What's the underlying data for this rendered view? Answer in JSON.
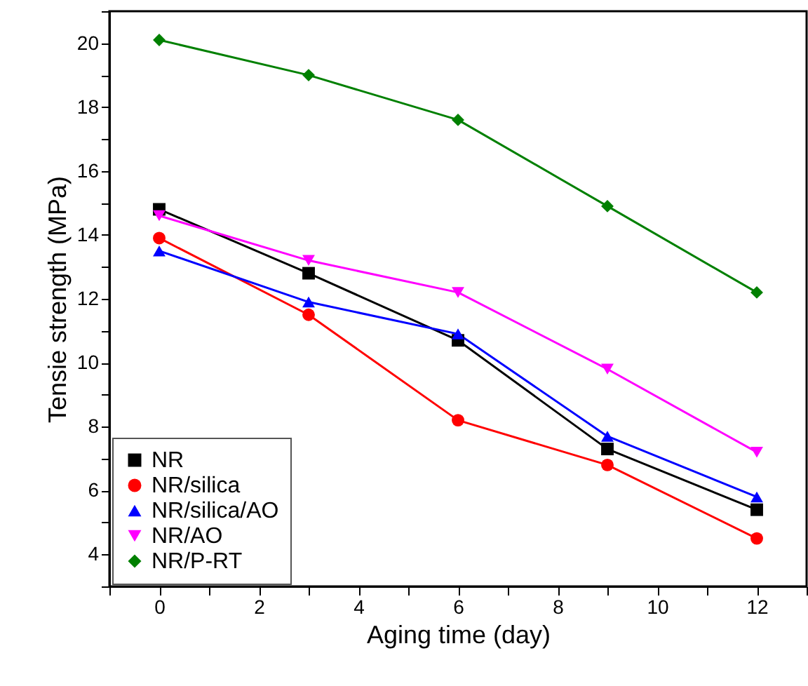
{
  "chart_data": {
    "type": "line",
    "xlabel": "Aging time (day)",
    "ylabel": "Tensie strength (MPa)",
    "x": [
      0,
      3,
      6,
      9,
      12
    ],
    "series": [
      {
        "name": "NR",
        "color": "#000000",
        "marker": "square",
        "values": [
          14.8,
          12.8,
          10.7,
          7.3,
          5.4
        ]
      },
      {
        "name": "NR/silica",
        "color": "#ff0000",
        "marker": "circle",
        "values": [
          13.9,
          11.5,
          8.2,
          6.8,
          4.5
        ]
      },
      {
        "name": "NR/silica/AO",
        "color": "#0000ff",
        "marker": "triangle-up",
        "values": [
          13.5,
          11.9,
          10.9,
          7.7,
          5.8
        ]
      },
      {
        "name": "NR/AO",
        "color": "#ff00ff",
        "marker": "triangle-down",
        "values": [
          14.6,
          13.2,
          12.2,
          9.8,
          7.2
        ]
      },
      {
        "name": "NR/P-RT",
        "color": "#008000",
        "marker": "diamond",
        "values": [
          20.1,
          19.0,
          17.6,
          14.9,
          12.2
        ]
      }
    ],
    "xlim": [
      -1,
      13
    ],
    "ylim": [
      3,
      21
    ],
    "xticks": [
      {
        "value": -1,
        "label": null
      },
      0,
      {
        "value": 1,
        "label": null
      },
      2,
      {
        "value": 3,
        "label": null
      },
      4,
      {
        "value": 5,
        "label": null
      },
      6,
      {
        "value": 7,
        "label": null
      },
      8,
      {
        "value": 9,
        "label": null
      },
      10,
      {
        "value": 11,
        "label": null
      },
      12,
      {
        "value": 13,
        "label": null
      }
    ],
    "yticks": [
      {
        "value": 3,
        "label": null
      },
      4,
      {
        "value": 5,
        "label": null
      },
      6,
      {
        "value": 7,
        "label": null
      },
      8,
      {
        "value": 9,
        "label": null
      },
      10,
      {
        "value": 11,
        "label": null
      },
      12,
      {
        "value": 13,
        "label": null
      },
      14,
      {
        "value": 15,
        "label": null
      },
      16,
      {
        "value": 17,
        "label": null
      },
      18,
      {
        "value": 19,
        "label": null
      },
      20,
      {
        "value": 21,
        "label": null
      }
    ],
    "grid": false,
    "legend": "bottom left",
    "line_style": "solid"
  }
}
